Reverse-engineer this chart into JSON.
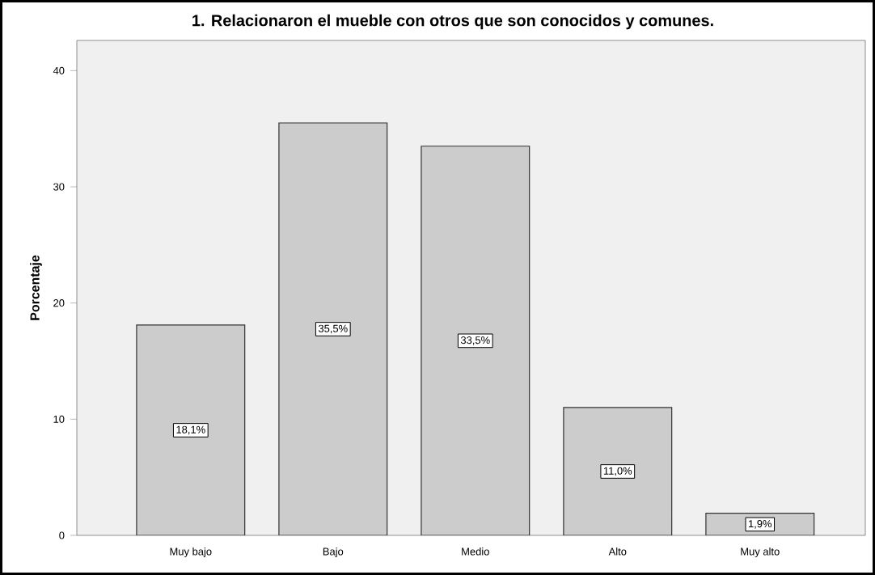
{
  "chart_data": {
    "type": "bar",
    "title": "1. Relacionaron el mueble con otros que son conocidos y comunes.",
    "ylabel": "Porcentaje",
    "categories": [
      "Muy bajo",
      "Bajo",
      "Medio",
      "Alto",
      "Muy alto"
    ],
    "values": [
      18.1,
      35.5,
      33.5,
      11.0,
      1.9
    ],
    "value_labels": [
      "18,1%",
      "35,5%",
      "33,5%",
      "11,0%",
      "1,9%"
    ],
    "color": "#cccccc",
    "ylim": [
      0,
      42.6
    ],
    "yticks": [
      0,
      10,
      20,
      30,
      40
    ],
    "grid": false
  }
}
